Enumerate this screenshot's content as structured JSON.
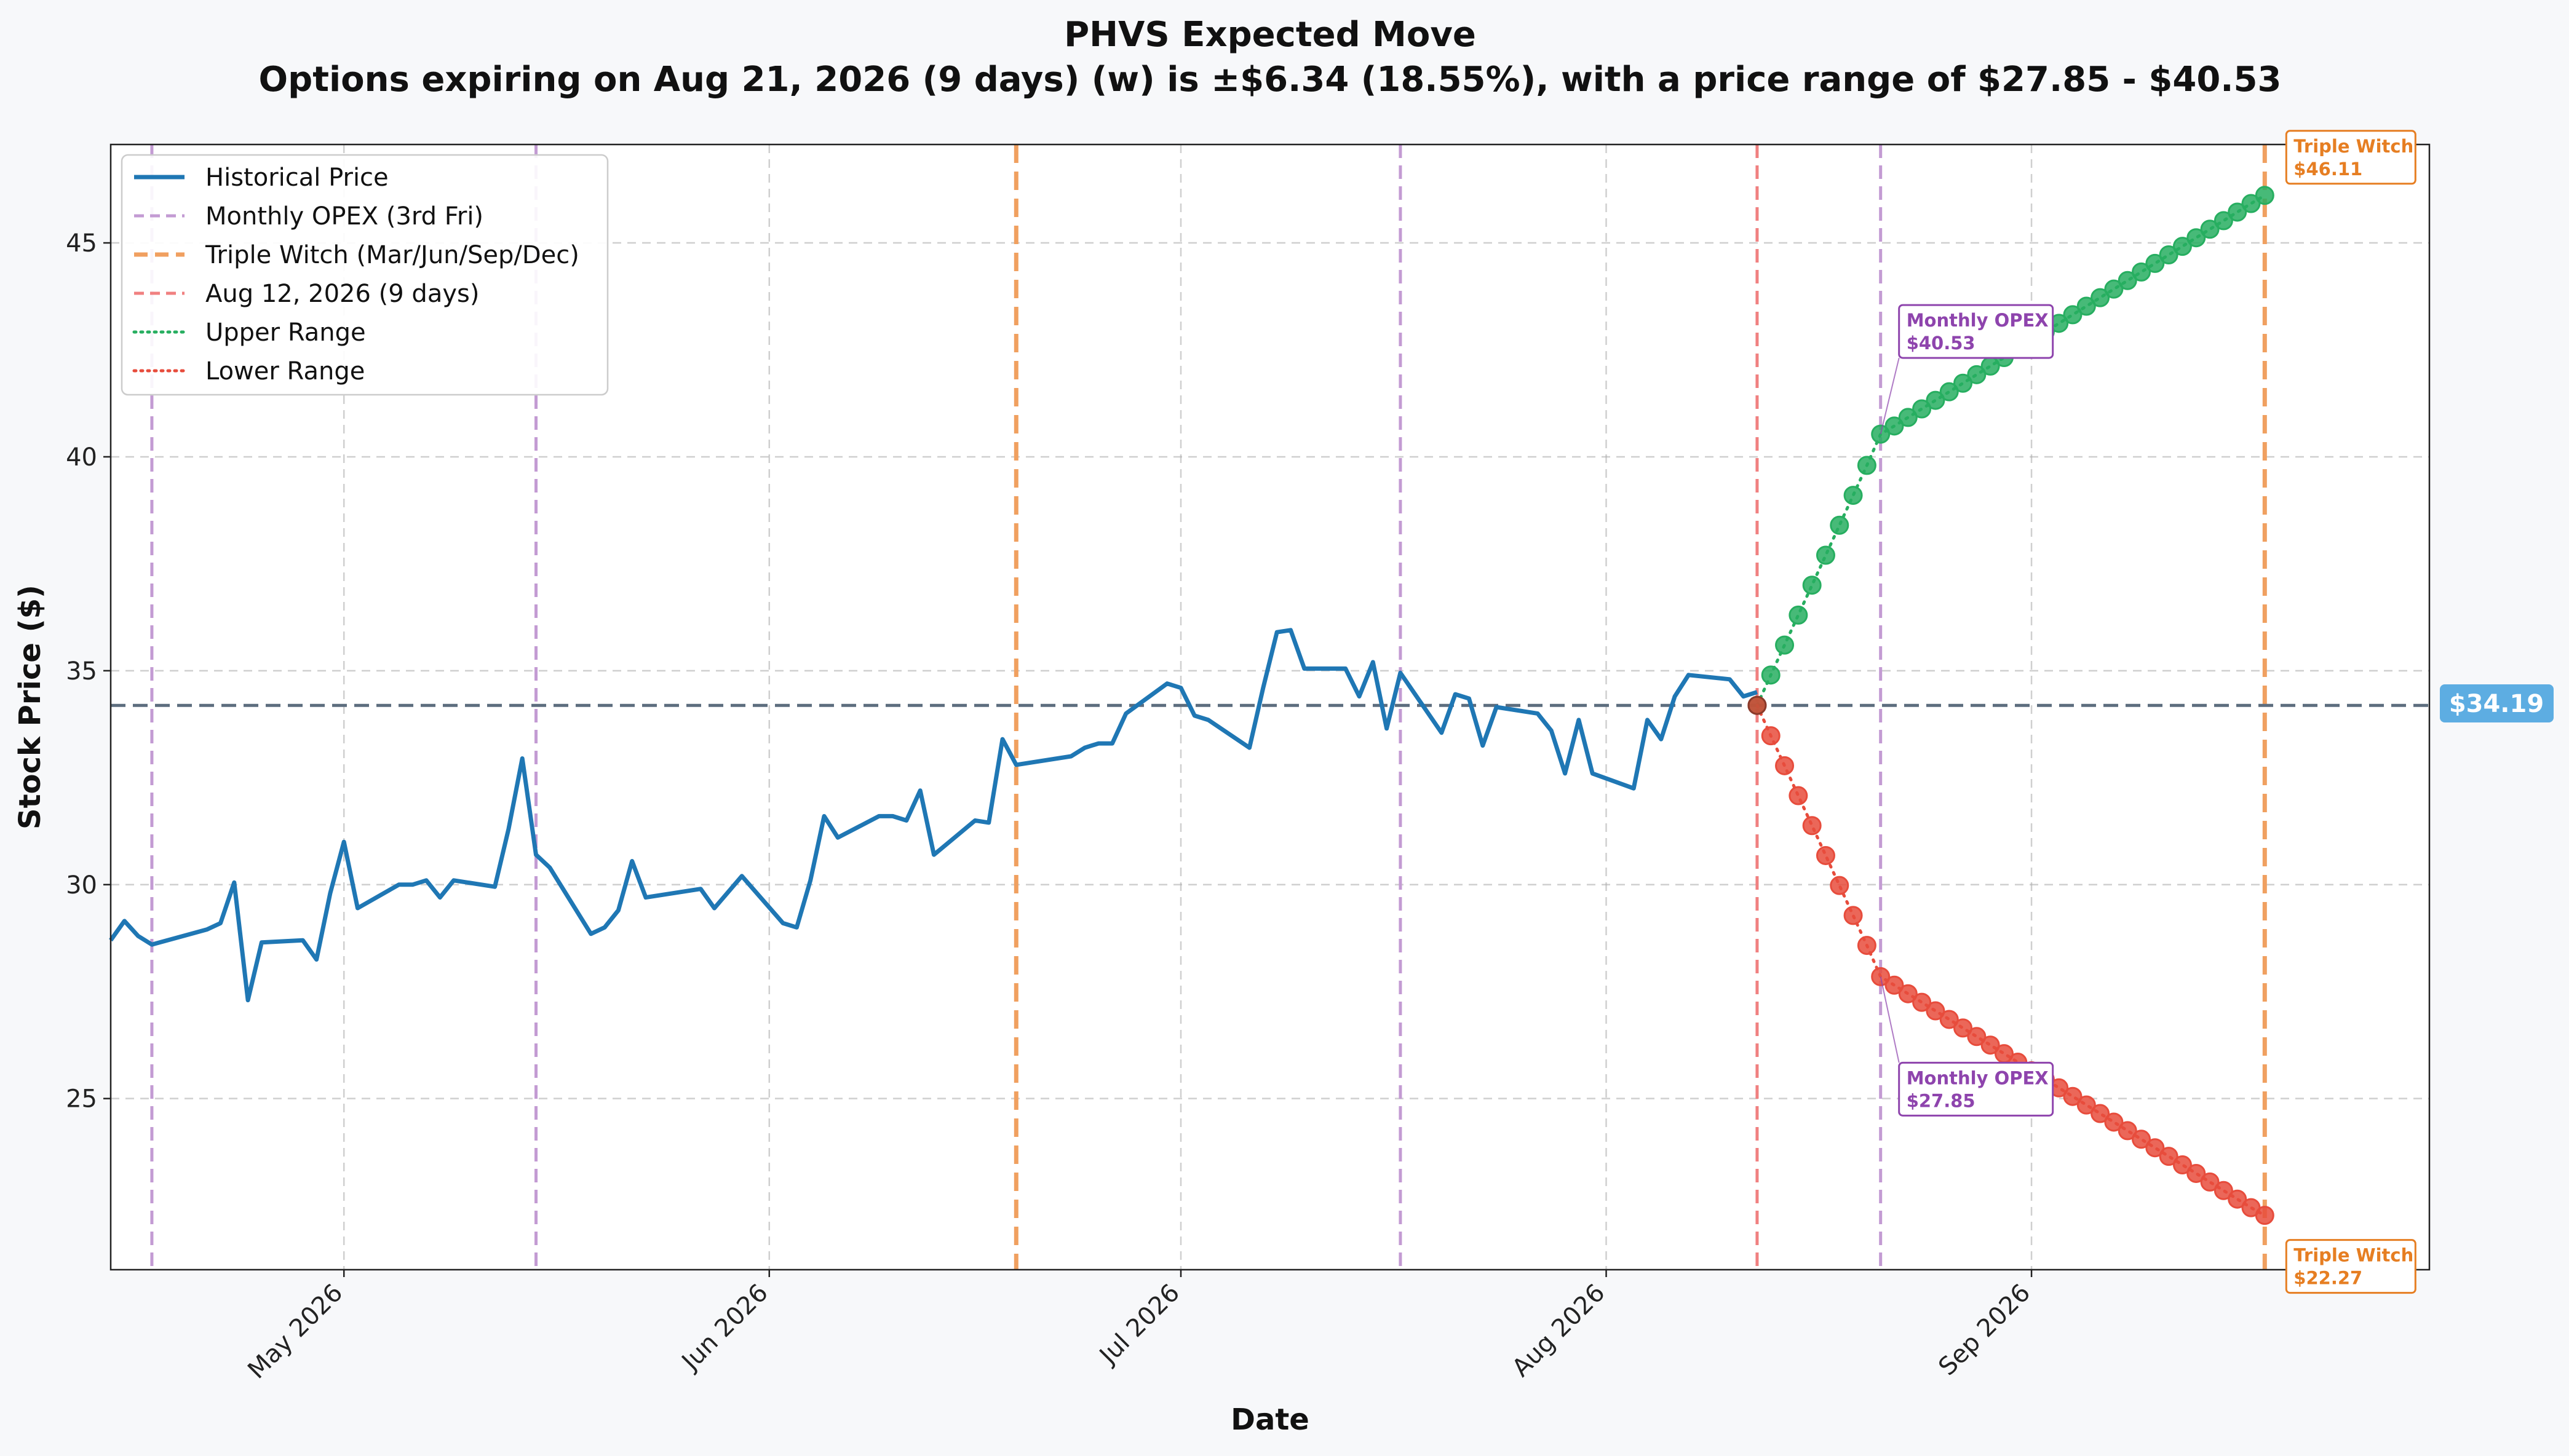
{
  "chart_data": {
    "type": "line",
    "title": "PHVS Expected Move",
    "subtitle": "Options expiring on Aug 21, 2026 (9 days) (w) is ±$6.34 (18.55%), with a price range of $27.85 - $40.53",
    "xlabel": "Date",
    "ylabel": "Stock Price ($)",
    "ylim": [
      21.0,
      47.3
    ],
    "xlim": [
      "2026-04-14",
      "2026-09-30"
    ],
    "grid": true,
    "legend_position": "top-left",
    "x_ticks": [
      {
        "date": "2026-05-01",
        "label": "May 2026"
      },
      {
        "date": "2026-06-01",
        "label": "Jun 2026"
      },
      {
        "date": "2026-07-01",
        "label": "Jul 2026"
      },
      {
        "date": "2026-08-01",
        "label": "Aug 2026"
      },
      {
        "date": "2026-09-01",
        "label": "Sep 2026"
      }
    ],
    "y_ticks": [
      25,
      30,
      35,
      40,
      45
    ],
    "current_price": 34.19,
    "current_price_label": "$34.19",
    "colors": {
      "historical": "#1f77b4",
      "monthly_opex": "#c39bd3",
      "triple_witch": "#f0a060",
      "today": "#f08080",
      "upper": "#27ae60",
      "lower": "#e74c3c",
      "current_line": "#5d6d7e",
      "current_badge": "#5dade2",
      "opex_annotation": "#8e44ad",
      "triple_annotation": "#e67e22"
    },
    "vertical_lines": [
      {
        "date": "2026-04-17",
        "kind": "monthly_opex"
      },
      {
        "date": "2026-05-15",
        "kind": "monthly_opex"
      },
      {
        "date": "2026-06-19",
        "kind": "triple_witch"
      },
      {
        "date": "2026-07-17",
        "kind": "monthly_opex"
      },
      {
        "date": "2026-08-12",
        "kind": "today"
      },
      {
        "date": "2026-08-21",
        "kind": "monthly_opex"
      },
      {
        "date": "2026-09-18",
        "kind": "triple_witch"
      }
    ],
    "legend": [
      {
        "label": "Historical Price",
        "style": "solid",
        "kind": "historical"
      },
      {
        "label": "Monthly OPEX (3rd Fri)",
        "style": "dashed",
        "kind": "monthly_opex"
      },
      {
        "label": "Triple Witch (Mar/Jun/Sep/Dec)",
        "style": "dashed",
        "kind": "triple_witch"
      },
      {
        "label": "Aug 12, 2026 (9 days)",
        "style": "dashed",
        "kind": "today"
      },
      {
        "label": "Upper Range",
        "style": "dotted",
        "kind": "upper"
      },
      {
        "label": "Lower Range",
        "style": "dotted",
        "kind": "lower"
      }
    ],
    "series": [
      {
        "name": "Historical Price",
        "points": [
          [
            "2026-04-14",
            28.7
          ],
          [
            "2026-04-15",
            29.15
          ],
          [
            "2026-04-16",
            28.8
          ],
          [
            "2026-04-17",
            28.6
          ],
          [
            "2026-04-21",
            28.95
          ],
          [
            "2026-04-22",
            29.1
          ],
          [
            "2026-04-23",
            30.05
          ],
          [
            "2026-04-24",
            27.3
          ],
          [
            "2026-04-25",
            28.65
          ],
          [
            "2026-04-28",
            28.7
          ],
          [
            "2026-04-29",
            28.25
          ],
          [
            "2026-04-30",
            29.8
          ],
          [
            "2026-05-01",
            31.0
          ],
          [
            "2026-05-02",
            29.45
          ],
          [
            "2026-05-05",
            30.0
          ],
          [
            "2026-05-06",
            30.0
          ],
          [
            "2026-05-07",
            30.1
          ],
          [
            "2026-05-08",
            29.7
          ],
          [
            "2026-05-09",
            30.1
          ],
          [
            "2026-05-12",
            29.95
          ],
          [
            "2026-05-13",
            31.3
          ],
          [
            "2026-05-14",
            32.95
          ],
          [
            "2026-05-15",
            30.7
          ],
          [
            "2026-05-16",
            30.4
          ],
          [
            "2026-05-19",
            28.85
          ],
          [
            "2026-05-20",
            29.0
          ],
          [
            "2026-05-21",
            29.4
          ],
          [
            "2026-05-22",
            30.55
          ],
          [
            "2026-05-23",
            29.7
          ],
          [
            "2026-05-27",
            29.9
          ],
          [
            "2026-05-28",
            29.45
          ],
          [
            "2026-05-30",
            30.2
          ],
          [
            "2026-06-02",
            29.1
          ],
          [
            "2026-06-03",
            29.0
          ],
          [
            "2026-06-04",
            30.1
          ],
          [
            "2026-06-05",
            31.6
          ],
          [
            "2026-06-06",
            31.1
          ],
          [
            "2026-06-09",
            31.6
          ],
          [
            "2026-06-10",
            31.6
          ],
          [
            "2026-06-11",
            31.5
          ],
          [
            "2026-06-12",
            32.2
          ],
          [
            "2026-06-13",
            30.7
          ],
          [
            "2026-06-16",
            31.5
          ],
          [
            "2026-06-17",
            31.45
          ],
          [
            "2026-06-18",
            33.4
          ],
          [
            "2026-06-19",
            32.8
          ],
          [
            "2026-06-23",
            33.0
          ],
          [
            "2026-06-24",
            33.2
          ],
          [
            "2026-06-25",
            33.3
          ],
          [
            "2026-06-26",
            33.3
          ],
          [
            "2026-06-27",
            34.0
          ],
          [
            "2026-06-30",
            34.7
          ],
          [
            "2026-07-01",
            34.6
          ],
          [
            "2026-07-02",
            33.95
          ],
          [
            "2026-07-03",
            33.85
          ],
          [
            "2026-07-06",
            33.2
          ],
          [
            "2026-07-07",
            34.6
          ],
          [
            "2026-07-08",
            35.9
          ],
          [
            "2026-07-09",
            35.95
          ],
          [
            "2026-07-10",
            35.05
          ],
          [
            "2026-07-13",
            35.05
          ],
          [
            "2026-07-14",
            34.4
          ],
          [
            "2026-07-15",
            35.2
          ],
          [
            "2026-07-16",
            33.65
          ],
          [
            "2026-07-17",
            34.95
          ],
          [
            "2026-07-20",
            33.55
          ],
          [
            "2026-07-21",
            34.45
          ],
          [
            "2026-07-22",
            34.35
          ],
          [
            "2026-07-23",
            33.25
          ],
          [
            "2026-07-24",
            34.15
          ],
          [
            "2026-07-27",
            34.0
          ],
          [
            "2026-07-28",
            33.6
          ],
          [
            "2026-07-29",
            32.6
          ],
          [
            "2026-07-30",
            33.85
          ],
          [
            "2026-07-31",
            32.6
          ],
          [
            "2026-08-03",
            32.25
          ],
          [
            "2026-08-04",
            33.85
          ],
          [
            "2026-08-05",
            33.4
          ],
          [
            "2026-08-06",
            34.4
          ],
          [
            "2026-08-07",
            34.9
          ],
          [
            "2026-08-10",
            34.8
          ],
          [
            "2026-08-11",
            34.4
          ],
          [
            "2026-08-12",
            34.5
          ]
        ]
      },
      {
        "name": "Upper Range",
        "points": [
          [
            "2026-08-12",
            34.19
          ],
          [
            "2026-08-13",
            34.9
          ],
          [
            "2026-08-14",
            35.6
          ],
          [
            "2026-08-15",
            36.3
          ],
          [
            "2026-08-16",
            37.0
          ],
          [
            "2026-08-17",
            37.7
          ],
          [
            "2026-08-18",
            38.4
          ],
          [
            "2026-08-19",
            39.1
          ],
          [
            "2026-08-20",
            39.8
          ],
          [
            "2026-08-21",
            40.53
          ],
          [
            "2026-08-22",
            40.72
          ],
          [
            "2026-08-23",
            40.92
          ],
          [
            "2026-08-24",
            41.12
          ],
          [
            "2026-08-25",
            41.32
          ],
          [
            "2026-08-26",
            41.52
          ],
          [
            "2026-08-27",
            41.72
          ],
          [
            "2026-08-28",
            41.92
          ],
          [
            "2026-08-29",
            42.12
          ],
          [
            "2026-08-30",
            42.32
          ],
          [
            "2026-08-31",
            42.52
          ],
          [
            "2026-09-01",
            42.72
          ],
          [
            "2026-09-02",
            42.92
          ],
          [
            "2026-09-03",
            43.12
          ],
          [
            "2026-09-04",
            43.32
          ],
          [
            "2026-09-05",
            43.52
          ],
          [
            "2026-09-06",
            43.72
          ],
          [
            "2026-09-07",
            43.92
          ],
          [
            "2026-09-08",
            44.12
          ],
          [
            "2026-09-09",
            44.32
          ],
          [
            "2026-09-10",
            44.52
          ],
          [
            "2026-09-11",
            44.72
          ],
          [
            "2026-09-12",
            44.92
          ],
          [
            "2026-09-13",
            45.12
          ],
          [
            "2026-09-14",
            45.32
          ],
          [
            "2026-09-15",
            45.52
          ],
          [
            "2026-09-16",
            45.72
          ],
          [
            "2026-09-17",
            45.92
          ],
          [
            "2026-09-18",
            46.11
          ]
        ]
      },
      {
        "name": "Lower Range",
        "points": [
          [
            "2026-08-12",
            34.19
          ],
          [
            "2026-08-13",
            33.48
          ],
          [
            "2026-08-14",
            32.78
          ],
          [
            "2026-08-15",
            32.08
          ],
          [
            "2026-08-16",
            31.38
          ],
          [
            "2026-08-17",
            30.68
          ],
          [
            "2026-08-18",
            29.98
          ],
          [
            "2026-08-19",
            29.28
          ],
          [
            "2026-08-20",
            28.58
          ],
          [
            "2026-08-21",
            27.85
          ],
          [
            "2026-08-22",
            27.65
          ],
          [
            "2026-08-23",
            27.45
          ],
          [
            "2026-08-24",
            27.25
          ],
          [
            "2026-08-25",
            27.05
          ],
          [
            "2026-08-26",
            26.85
          ],
          [
            "2026-08-27",
            26.65
          ],
          [
            "2026-08-28",
            26.45
          ],
          [
            "2026-08-29",
            26.25
          ],
          [
            "2026-08-30",
            26.05
          ],
          [
            "2026-08-31",
            25.85
          ],
          [
            "2026-09-01",
            25.65
          ],
          [
            "2026-09-02",
            25.45
          ],
          [
            "2026-09-03",
            25.25
          ],
          [
            "2026-09-04",
            25.05
          ],
          [
            "2026-09-05",
            24.85
          ],
          [
            "2026-09-06",
            24.65
          ],
          [
            "2026-09-07",
            24.45
          ],
          [
            "2026-09-08",
            24.25
          ],
          [
            "2026-09-09",
            24.05
          ],
          [
            "2026-09-10",
            23.85
          ],
          [
            "2026-09-11",
            23.65
          ],
          [
            "2026-09-12",
            23.45
          ],
          [
            "2026-09-13",
            23.25
          ],
          [
            "2026-09-14",
            23.05
          ],
          [
            "2026-09-15",
            22.85
          ],
          [
            "2026-09-16",
            22.65
          ],
          [
            "2026-09-17",
            22.45
          ],
          [
            "2026-09-18",
            22.27
          ]
        ]
      }
    ],
    "annotations": [
      {
        "kind": "monthly_opex",
        "line1": "Monthly OPEX",
        "line2": "$40.53",
        "date": "2026-08-21",
        "value": 40.53,
        "side": "upper"
      },
      {
        "kind": "monthly_opex",
        "line1": "Monthly OPEX",
        "line2": "$27.85",
        "date": "2026-08-21",
        "value": 27.85,
        "side": "lower"
      },
      {
        "kind": "triple_witch",
        "line1": "Triple Witch",
        "line2": "$46.11",
        "date": "2026-09-18",
        "value": 46.11,
        "side": "upper"
      },
      {
        "kind": "triple_witch",
        "line1": "Triple Witch",
        "line2": "$22.27",
        "date": "2026-09-18",
        "value": 22.27,
        "side": "lower"
      }
    ]
  }
}
